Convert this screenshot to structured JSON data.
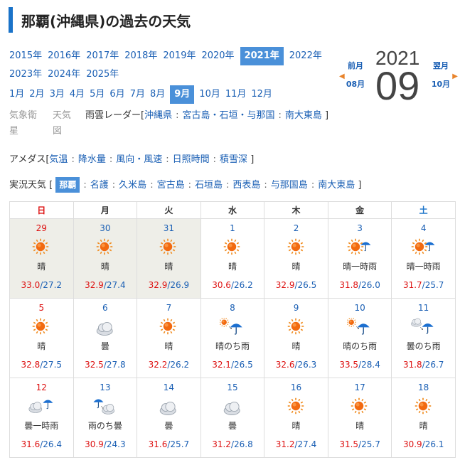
{
  "page_title": "那覇(沖縄県)の過去の天気",
  "years": [
    "2015年",
    "2016年",
    "2017年",
    "2018年",
    "2019年",
    "2020年",
    "2021年",
    "2022年",
    "2023年",
    "2024年",
    "2025年"
  ],
  "selected_year": "2021年",
  "months": [
    "1月",
    "2月",
    "3月",
    "4月",
    "5月",
    "6月",
    "7月",
    "8月",
    "9月",
    "10月",
    "11月",
    "12月"
  ],
  "selected_month": "9月",
  "date_display": {
    "year": "2021",
    "month": "09"
  },
  "prev_nav": {
    "label": "前月",
    "month": "08月"
  },
  "next_nav": {
    "label": "翌月",
    "month": "10月"
  },
  "row1": {
    "satellite_a": "気象衛",
    "satellite_b": "星",
    "chart_a": "天気",
    "chart_b": "図",
    "radar_label": "雨雲レーダー[",
    "radar_links": [
      "沖縄県",
      "宮古島・石垣・与那国",
      "南大東島"
    ],
    "close": "]"
  },
  "row2": {
    "label": "アメダス[",
    "links": [
      "気温",
      "降水量",
      "風向・風速",
      "日照時間",
      "積雪深"
    ],
    "close": "]"
  },
  "row3": {
    "label": "実況天気 [",
    "selected": "那覇",
    "links": [
      "名護",
      "久米島",
      "宮古島",
      "石垣島",
      "西表島",
      "与那国島",
      "南大東島"
    ],
    "close": "]"
  },
  "weekdays": [
    "日",
    "月",
    "火",
    "水",
    "木",
    "金",
    "土"
  ],
  "colors": {
    "accent": "#4a90d9",
    "title_bar": "#1a73c9",
    "high": "#d11111",
    "low": "#1a5fb4",
    "prev_bg": "#eeeee8"
  },
  "calendar": [
    [
      {
        "day": "29",
        "desc": "晴",
        "hi": "33.0",
        "lo": "/27.2",
        "icon": "sun-icon",
        "prev": true
      },
      {
        "day": "30",
        "desc": "晴",
        "hi": "32.9",
        "lo": "/27.4",
        "icon": "sun-icon",
        "prev": true
      },
      {
        "day": "31",
        "desc": "晴",
        "hi": "32.9",
        "lo": "/26.9",
        "icon": "sun-icon",
        "prev": true
      },
      {
        "day": "1",
        "desc": "晴",
        "hi": "30.6",
        "lo": "/26.2",
        "icon": "sun-icon"
      },
      {
        "day": "2",
        "desc": "晴",
        "hi": "32.9",
        "lo": "/26.5",
        "icon": "sun-icon"
      },
      {
        "day": "3",
        "desc": "晴一時雨",
        "hi": "31.8",
        "lo": "/26.0",
        "icon": "sun-rain-icon"
      },
      {
        "day": "4",
        "desc": "晴一時雨",
        "hi": "31.7",
        "lo": "/25.7",
        "icon": "sun-rain-icon"
      }
    ],
    [
      {
        "day": "5",
        "desc": "晴",
        "hi": "32.8",
        "lo": "/27.5",
        "icon": "sun-icon"
      },
      {
        "day": "6",
        "desc": "曇",
        "hi": "32.5",
        "lo": "/27.8",
        "icon": "cloud-icon"
      },
      {
        "day": "7",
        "desc": "晴",
        "hi": "32.2",
        "lo": "/26.2",
        "icon": "sun-icon"
      },
      {
        "day": "8",
        "desc": "晴のち雨",
        "hi": "32.1",
        "lo": "/26.5",
        "icon": "sun-then-rain-icon"
      },
      {
        "day": "9",
        "desc": "晴",
        "hi": "32.6",
        "lo": "/26.3",
        "icon": "sun-icon"
      },
      {
        "day": "10",
        "desc": "晴のち雨",
        "hi": "33.5",
        "lo": "/28.4",
        "icon": "sun-then-rain-icon"
      },
      {
        "day": "11",
        "desc": "曇のち雨",
        "hi": "31.8",
        "lo": "/26.7",
        "icon": "cloud-then-rain-icon"
      }
    ],
    [
      {
        "day": "12",
        "desc": "曇一時雨",
        "hi": "31.6",
        "lo": "/26.4",
        "icon": "cloud-rain-icon"
      },
      {
        "day": "13",
        "desc": "雨のち曇",
        "hi": "30.9",
        "lo": "/24.3",
        "icon": "rain-then-cloud-icon"
      },
      {
        "day": "14",
        "desc": "曇",
        "hi": "31.6",
        "lo": "/25.7",
        "icon": "cloud-icon"
      },
      {
        "day": "15",
        "desc": "曇",
        "hi": "31.2",
        "lo": "/26.8",
        "icon": "cloud-icon"
      },
      {
        "day": "16",
        "desc": "晴",
        "hi": "31.2",
        "lo": "/27.4",
        "icon": "sun-icon"
      },
      {
        "day": "17",
        "desc": "晴",
        "hi": "31.5",
        "lo": "/25.7",
        "icon": "sun-icon"
      },
      {
        "day": "18",
        "desc": "晴",
        "hi": "30.9",
        "lo": "/26.1",
        "icon": "sun-icon"
      }
    ]
  ]
}
